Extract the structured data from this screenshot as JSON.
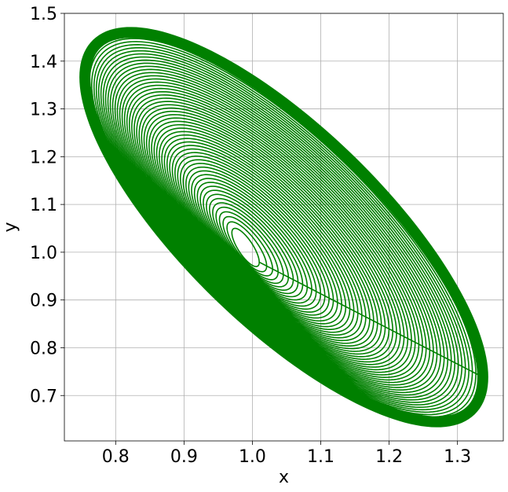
{
  "chart_data": {
    "type": "line",
    "title": "",
    "xlabel": "x",
    "ylabel": "y",
    "xlim": [
      0.725,
      1.367
    ],
    "ylim": [
      0.605,
      1.5
    ],
    "xticks": [
      0.8,
      0.9,
      1.0,
      1.1,
      1.2,
      1.3
    ],
    "xtick_labels": [
      "0.8",
      "0.9",
      "1.0",
      "1.1",
      "1.2",
      "1.3"
    ],
    "yticks": [
      0.7,
      0.8,
      0.9,
      1.0,
      1.1,
      1.2,
      1.3,
      1.4,
      1.5
    ],
    "ytick_labels": [
      "0.7",
      "0.8",
      "0.9",
      "1.0",
      "1.1",
      "1.2",
      "1.3",
      "1.4",
      "1.5"
    ],
    "grid": true,
    "series": [
      {
        "color": "#008000",
        "center": [
          0.99,
          1.01
        ],
        "inner_ellipse": {
          "x_range": [
            0.97,
            1.01
          ],
          "y_range": [
            0.97,
            1.05
          ]
        },
        "outer_ellipse": {
          "x_range": [
            0.755,
            1.337
          ],
          "y_range": [
            0.645,
            1.46
          ]
        },
        "loops": 55
      }
    ]
  }
}
